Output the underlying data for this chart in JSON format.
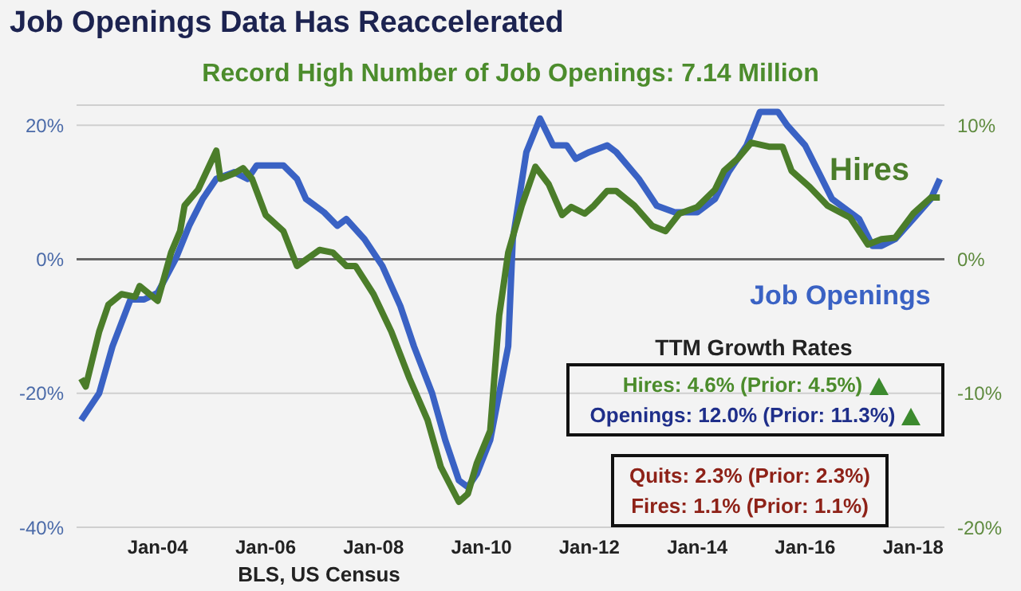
{
  "chart_data": {
    "type": "line",
    "title": "Job Openings Data Has Reaccelerated",
    "subtitle": "Record High Number of Job Openings: 7.14 Million",
    "xlim": [
      "2002-07",
      "2018-08"
    ],
    "xticks": [
      {
        "value": "2004-01",
        "label": "Jan-04"
      },
      {
        "value": "2006-01",
        "label": "Jan-06"
      },
      {
        "value": "2008-01",
        "label": "Jan-08"
      },
      {
        "value": "2010-01",
        "label": "Jan-10"
      },
      {
        "value": "2012-01",
        "label": "Jan-12"
      },
      {
        "value": "2014-01",
        "label": "Jan-14"
      },
      {
        "value": "2016-01",
        "label": "Jan-16"
      },
      {
        "value": "2018-01",
        "label": "Jan-18"
      }
    ],
    "ylim": [
      -40,
      23
    ],
    "yticks": [
      {
        "value": -40,
        "label": "-40%"
      },
      {
        "value": -20,
        "label": "-20%"
      },
      {
        "value": 0,
        "label": "0%"
      },
      {
        "value": 20,
        "label": "20%"
      }
    ],
    "y2lim": [
      -20,
      11.5
    ],
    "y2ticks": [
      {
        "value": -20,
        "label": "-20%"
      },
      {
        "value": -10,
        "label": "-10%"
      },
      {
        "value": 0,
        "label": "0%"
      },
      {
        "value": 10,
        "label": "10%"
      }
    ],
    "grid": "y",
    "marker": "none",
    "line_style": "solid",
    "series": [
      {
        "name": "Job Openings",
        "color": "#3a62c4",
        "x": [
          "2002-08",
          "2002-12",
          "2003-03",
          "2003-07",
          "2003-10",
          "2004-01",
          "2004-05",
          "2004-08",
          "2004-11",
          "2005-02",
          "2005-06",
          "2005-09",
          "2005-11",
          "2006-02",
          "2006-05",
          "2006-08",
          "2006-10",
          "2007-02",
          "2007-05",
          "2007-07",
          "2007-11",
          "2008-03",
          "2008-07",
          "2008-10",
          "2009-02",
          "2009-05",
          "2009-08",
          "2009-10",
          "2009-12",
          "2010-03",
          "2010-07",
          "2010-08",
          "2010-11",
          "2011-02",
          "2011-05",
          "2011-08",
          "2011-10",
          "2012-01",
          "2012-05",
          "2012-07",
          "2012-12",
          "2013-04",
          "2013-08",
          "2014-01",
          "2014-05",
          "2014-08",
          "2014-12",
          "2015-03",
          "2015-07",
          "2015-09",
          "2016-01",
          "2016-04",
          "2016-07",
          "2017-01",
          "2017-04",
          "2017-06",
          "2017-09",
          "2018-01",
          "2018-05",
          "2018-07"
        ],
        "values": [
          -24,
          -20,
          -13,
          -6,
          -6,
          -5,
          0,
          5,
          9,
          12,
          13,
          12,
          14,
          14,
          14,
          12,
          9,
          7,
          5,
          6,
          3,
          -1,
          -7,
          -13,
          -20,
          -27,
          -33,
          -34,
          -32,
          -27,
          -13,
          3,
          16,
          21,
          17,
          17,
          15,
          16,
          17,
          16,
          12,
          8,
          7,
          7,
          9,
          13,
          17,
          22,
          22,
          20,
          17,
          13,
          9,
          6,
          2,
          2,
          3,
          6,
          9,
          12
        ]
      },
      {
        "name": "Hires",
        "color": "#4b7d2a",
        "axis": "y2",
        "x": [
          "2002-08",
          "2002-09",
          "2002-12",
          "2003-02",
          "2003-05",
          "2003-08",
          "2003-09",
          "2004-01",
          "2004-04",
          "2004-06",
          "2004-07",
          "2004-10",
          "2005-02",
          "2005-03",
          "2005-06",
          "2005-08",
          "2005-10",
          "2006-01",
          "2006-05",
          "2006-08",
          "2007-01",
          "2007-04",
          "2007-07",
          "2007-09",
          "2008-01",
          "2008-05",
          "2008-09",
          "2009-01",
          "2009-04",
          "2009-08",
          "2009-10",
          "2009-12",
          "2010-03",
          "2010-05",
          "2010-07",
          "2010-10",
          "2011-01",
          "2011-04",
          "2011-07",
          "2011-09",
          "2011-12",
          "2012-02",
          "2012-05",
          "2012-07",
          "2012-11",
          "2013-03",
          "2013-06",
          "2013-09",
          "2014-01",
          "2014-05",
          "2014-07",
          "2014-10",
          "2015-01",
          "2015-05",
          "2015-08",
          "2015-10",
          "2016-02",
          "2016-06",
          "2016-11",
          "2017-03",
          "2017-06",
          "2017-09",
          "2018-01",
          "2018-05",
          "2018-07"
        ],
        "values": [
          -8.9,
          -9.5,
          -5.4,
          -3.4,
          -2.6,
          -2.8,
          -2.0,
          -3.1,
          0.5,
          2.1,
          4.0,
          5.2,
          8.1,
          6.0,
          6.4,
          6.8,
          6.0,
          3.3,
          2.1,
          -0.5,
          0.7,
          0.5,
          -0.5,
          -0.5,
          -2.6,
          -5.4,
          -8.9,
          -12.0,
          -15.5,
          -18.1,
          -17.5,
          -15.2,
          -12.8,
          -4.2,
          0.5,
          4.0,
          6.9,
          5.6,
          3.3,
          3.9,
          3.4,
          4.0,
          5.1,
          5.1,
          4.0,
          2.5,
          2.1,
          3.4,
          3.9,
          5.2,
          6.6,
          7.5,
          8.7,
          8.4,
          8.4,
          6.6,
          5.4,
          4.0,
          3.1,
          1.1,
          1.5,
          1.6,
          3.4,
          4.6,
          4.6
        ]
      }
    ],
    "annotations": [
      "TTM Growth Rates",
      "Hires: 4.6% (Prior: 4.5%)",
      "Openings: 12.0% (Prior: 11.3%)",
      "Quits: 2.3% (Prior: 2.3%)",
      "Fires: 1.1% (Prior: 1.1%)",
      "BLS, US Census"
    ]
  }
}
